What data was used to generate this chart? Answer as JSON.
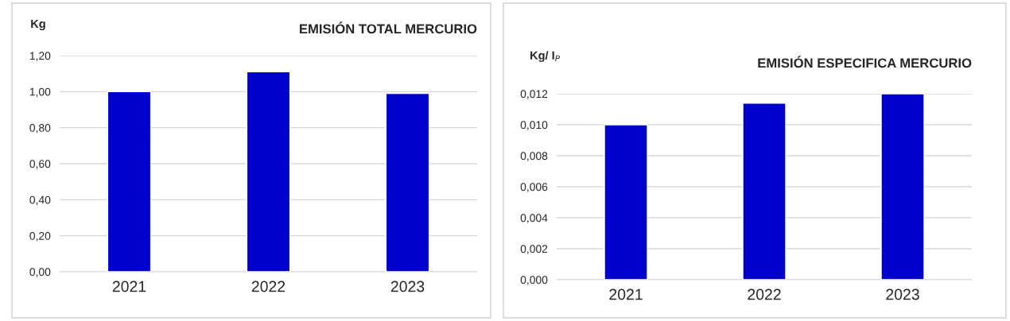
{
  "chart_data": [
    {
      "type": "bar",
      "title": "EMISIÓN TOTAL MERCURIO",
      "ylabel": "Kg",
      "categories": [
        "2021",
        "2022",
        "2023"
      ],
      "series": [
        {
          "color": "#0000cc",
          "values": [
            1.0,
            1.11,
            0.99
          ]
        }
      ],
      "ylim": [
        0,
        1.2
      ],
      "yticks": [
        {
          "value": 0,
          "label": "0,00"
        },
        {
          "value": 0.2,
          "label": "0,20"
        },
        {
          "value": 0.4,
          "label": "0,40"
        },
        {
          "value": 0.6,
          "label": "0,60"
        },
        {
          "value": 0.8,
          "label": "0,80"
        },
        {
          "value": 1.0,
          "label": "1,00"
        },
        {
          "value": 1.2,
          "label": "1,20"
        }
      ],
      "grid": "y"
    },
    {
      "type": "bar",
      "title": "EMISIÓN ESPECIFICA MERCURIO",
      "ylabel": "Kg/ I$_{P}$",
      "categories": [
        "2021",
        "2022",
        "2023"
      ],
      "series": [
        {
          "color": "#0000cc",
          "values": [
            0.01,
            0.0114,
            0.012
          ]
        }
      ],
      "ylim": [
        0,
        0.012
      ],
      "yticks": [
        {
          "value": 0,
          "label": "0,000"
        },
        {
          "value": 0.002,
          "label": "0,002"
        },
        {
          "value": 0.004,
          "label": "0,004"
        },
        {
          "value": 0.006,
          "label": "0,006"
        },
        {
          "value": 0.008,
          "label": "0,008"
        },
        {
          "value": 0.01,
          "label": "0,010"
        },
        {
          "value": 0.012,
          "label": "0,012"
        }
      ],
      "grid": "y"
    }
  ]
}
